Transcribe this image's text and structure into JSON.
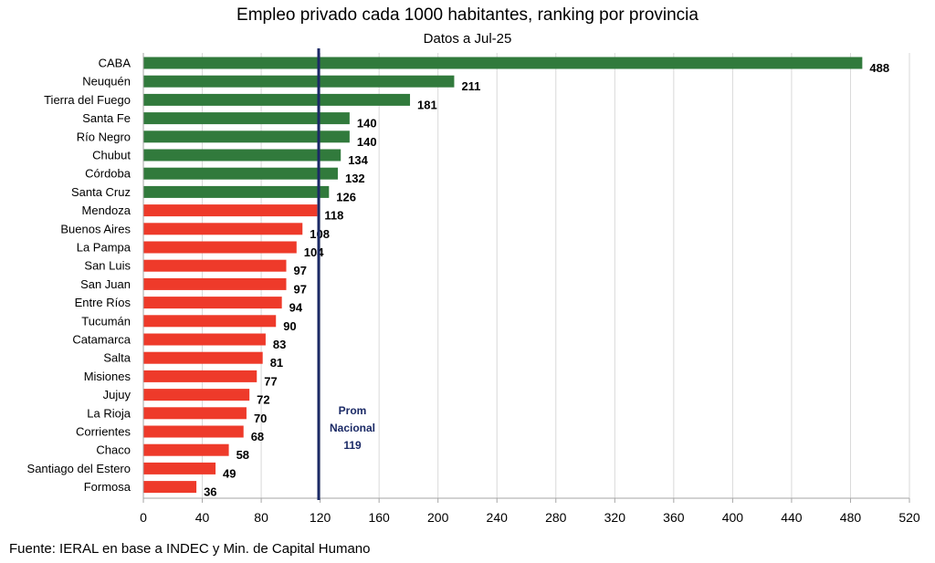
{
  "chart_data": {
    "type": "bar",
    "orientation": "horizontal",
    "title": "Empleo privado cada 1000 habitantes, ranking por provincia",
    "subtitle": "Datos a Jul-25",
    "categories": [
      "CABA",
      "Neuquén",
      "Tierra del Fuego",
      "Santa Fe",
      "Río Negro",
      "Chubut",
      "Córdoba",
      "Santa Cruz",
      "Mendoza",
      "Buenos Aires",
      "La Pampa",
      "San Luis",
      "San Juan",
      "Entre Ríos",
      "Tucumán",
      "Catamarca",
      "Salta",
      "Misiones",
      "Jujuy",
      "La Rioja",
      "Corrientes",
      "Chaco",
      "Santiago del Estero",
      "Formosa"
    ],
    "values": [
      488,
      211,
      181,
      140,
      140,
      134,
      132,
      126,
      118,
      108,
      104,
      97,
      97,
      94,
      90,
      83,
      81,
      77,
      72,
      70,
      68,
      58,
      49,
      36
    ],
    "xlim": [
      0,
      520
    ],
    "xticks": [
      0,
      40,
      80,
      120,
      160,
      200,
      240,
      280,
      320,
      360,
      400,
      440,
      480,
      520
    ],
    "grid": "vertical",
    "colors": {
      "above": "#317a3c",
      "below": "#ee3a2a",
      "reference_line": "#1b2a66"
    },
    "reference_line": {
      "value": 119,
      "label_lines": [
        "Prom",
        "Nacional",
        "119"
      ]
    },
    "source": "Fuente: IERAL en base a INDEC y Min. de Capital Humano"
  }
}
